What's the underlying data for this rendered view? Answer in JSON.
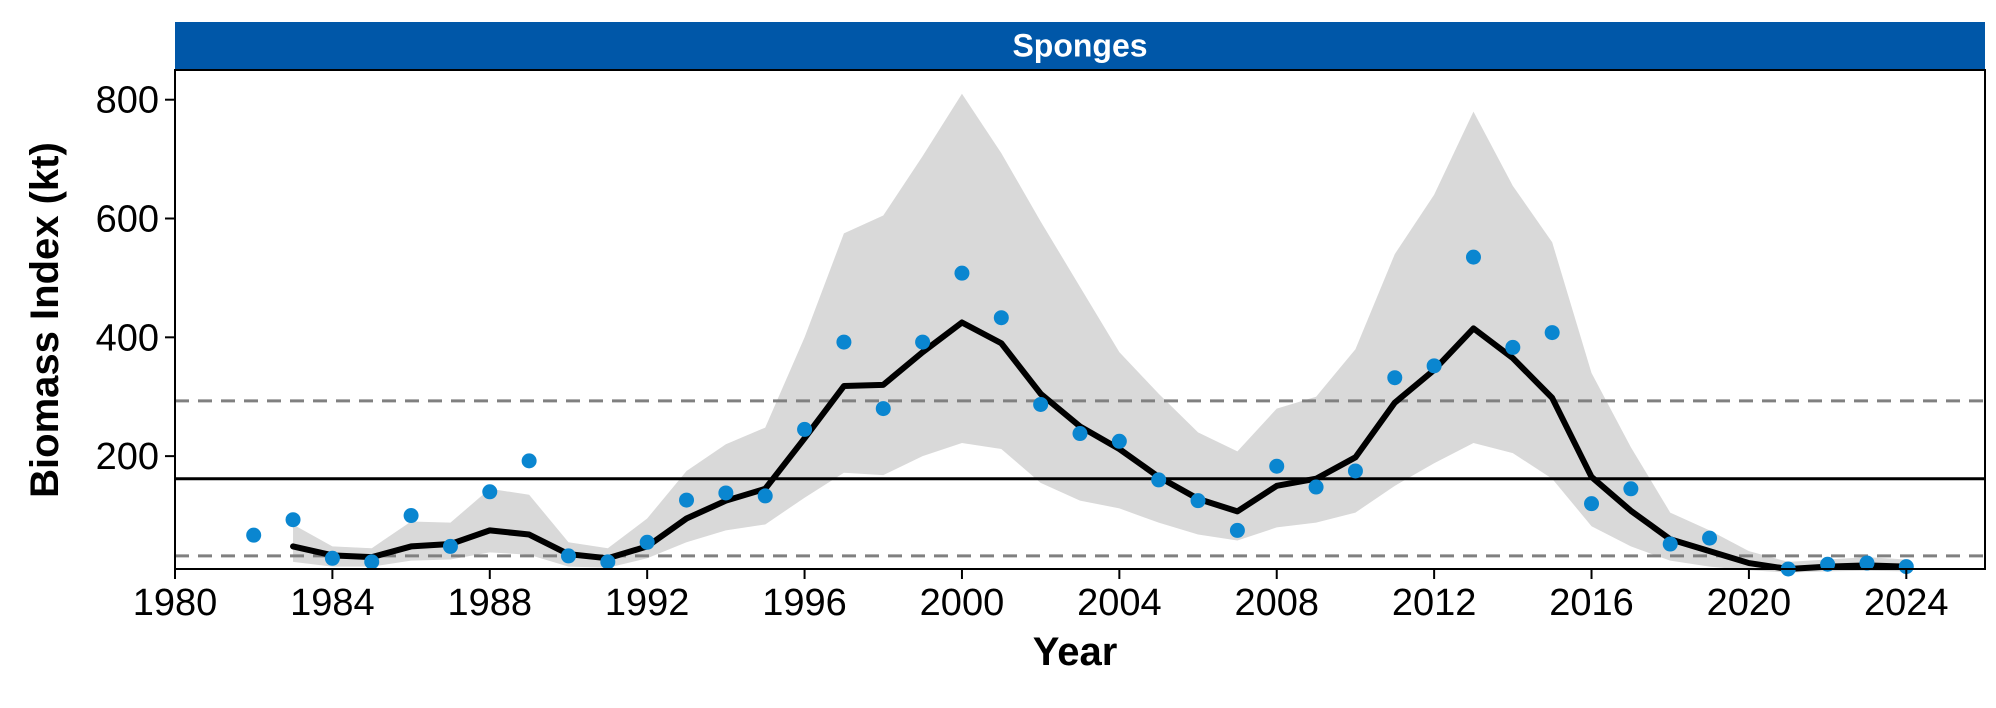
{
  "chart_data": {
    "type": "line",
    "panel_title": "Sponges",
    "xlabel": "Year",
    "ylabel": "Biomass Index (kt)",
    "xlim": [
      1980,
      2026
    ],
    "ylim": [
      10,
      850
    ],
    "x_ticks": [
      1980,
      1984,
      1988,
      1992,
      1996,
      2000,
      2004,
      2008,
      2012,
      2016,
      2020,
      2024
    ],
    "y_ticks": [
      200,
      400,
      600,
      800
    ],
    "reference_lines": {
      "solid_mean": 162,
      "dashed_upper": 293,
      "dashed_lower": 32
    },
    "observed_points": {
      "x": [
        1982,
        1983,
        1984,
        1985,
        1986,
        1987,
        1988,
        1989,
        1990,
        1991,
        1992,
        1993,
        1994,
        1995,
        1996,
        1997,
        1998,
        1999,
        2000,
        2001,
        2002,
        2003,
        2004,
        2005,
        2006,
        2007,
        2008,
        2009,
        2010,
        2011,
        2012,
        2013,
        2014,
        2015,
        2016,
        2017,
        2018,
        2019,
        2020,
        2021,
        2022,
        2023,
        2024
      ],
      "y": [
        67,
        93,
        28,
        22,
        100,
        48,
        140,
        192,
        32,
        22,
        55,
        126,
        138,
        133,
        245,
        392,
        280,
        392,
        508,
        433,
        287,
        238,
        225,
        160,
        125,
        75,
        183,
        148,
        175,
        332,
        352,
        535,
        383,
        408,
        120,
        145,
        52,
        62,
        null,
        10,
        18,
        20,
        14
      ]
    },
    "fitted_line": {
      "x": [
        1983,
        1984,
        1985,
        1986,
        1987,
        1988,
        1989,
        1990,
        1991,
        1992,
        1993,
        1994,
        1995,
        1996,
        1997,
        1998,
        1999,
        2000,
        2001,
        2002,
        2003,
        2004,
        2005,
        2006,
        2007,
        2008,
        2009,
        2010,
        2011,
        2012,
        2013,
        2014,
        2015,
        2016,
        2017,
        2018,
        2019,
        2020,
        2021,
        2022,
        2023,
        2024
      ],
      "y": [
        48,
        33,
        30,
        48,
        52,
        75,
        68,
        35,
        28,
        48,
        95,
        125,
        145,
        230,
        318,
        320,
        375,
        425,
        390,
        305,
        250,
        212,
        165,
        128,
        107,
        150,
        162,
        198,
        290,
        345,
        415,
        365,
        298,
        165,
        108,
        60,
        40,
        20,
        10,
        14,
        16,
        14
      ]
    },
    "confidence_band": {
      "x": [
        1983,
        1984,
        1985,
        1986,
        1987,
        1988,
        1989,
        1990,
        1991,
        1992,
        1993,
        1994,
        1995,
        1996,
        1997,
        1998,
        1999,
        2000,
        2001,
        2002,
        2003,
        2004,
        2005,
        2006,
        2007,
        2008,
        2009,
        2010,
        2011,
        2012,
        2013,
        2014,
        2015,
        2016,
        2017,
        2018,
        2019,
        2020,
        2021,
        2022,
        2023,
        2024
      ],
      "lower": [
        22,
        14,
        14,
        24,
        26,
        38,
        34,
        14,
        12,
        28,
        55,
        75,
        85,
        130,
        172,
        168,
        200,
        222,
        212,
        155,
        125,
        112,
        88,
        68,
        58,
        80,
        88,
        105,
        150,
        188,
        222,
        205,
        162,
        82,
        48,
        24,
        14,
        8,
        4,
        6,
        7,
        6
      ],
      "upper": [
        85,
        48,
        45,
        90,
        88,
        145,
        135,
        55,
        45,
        95,
        175,
        220,
        248,
        400,
        575,
        605,
        705,
        810,
        710,
        595,
        485,
        375,
        305,
        240,
        208,
        280,
        300,
        380,
        540,
        640,
        780,
        655,
        560,
        340,
        215,
        105,
        75,
        40,
        22,
        26,
        30,
        26
      ]
    },
    "colors": {
      "strip": "#0057A8",
      "points": "#0A86D0",
      "line": "#000000",
      "band": "#D9D9D9",
      "dashed": "#808080"
    },
    "grid": false,
    "legend": "none"
  }
}
